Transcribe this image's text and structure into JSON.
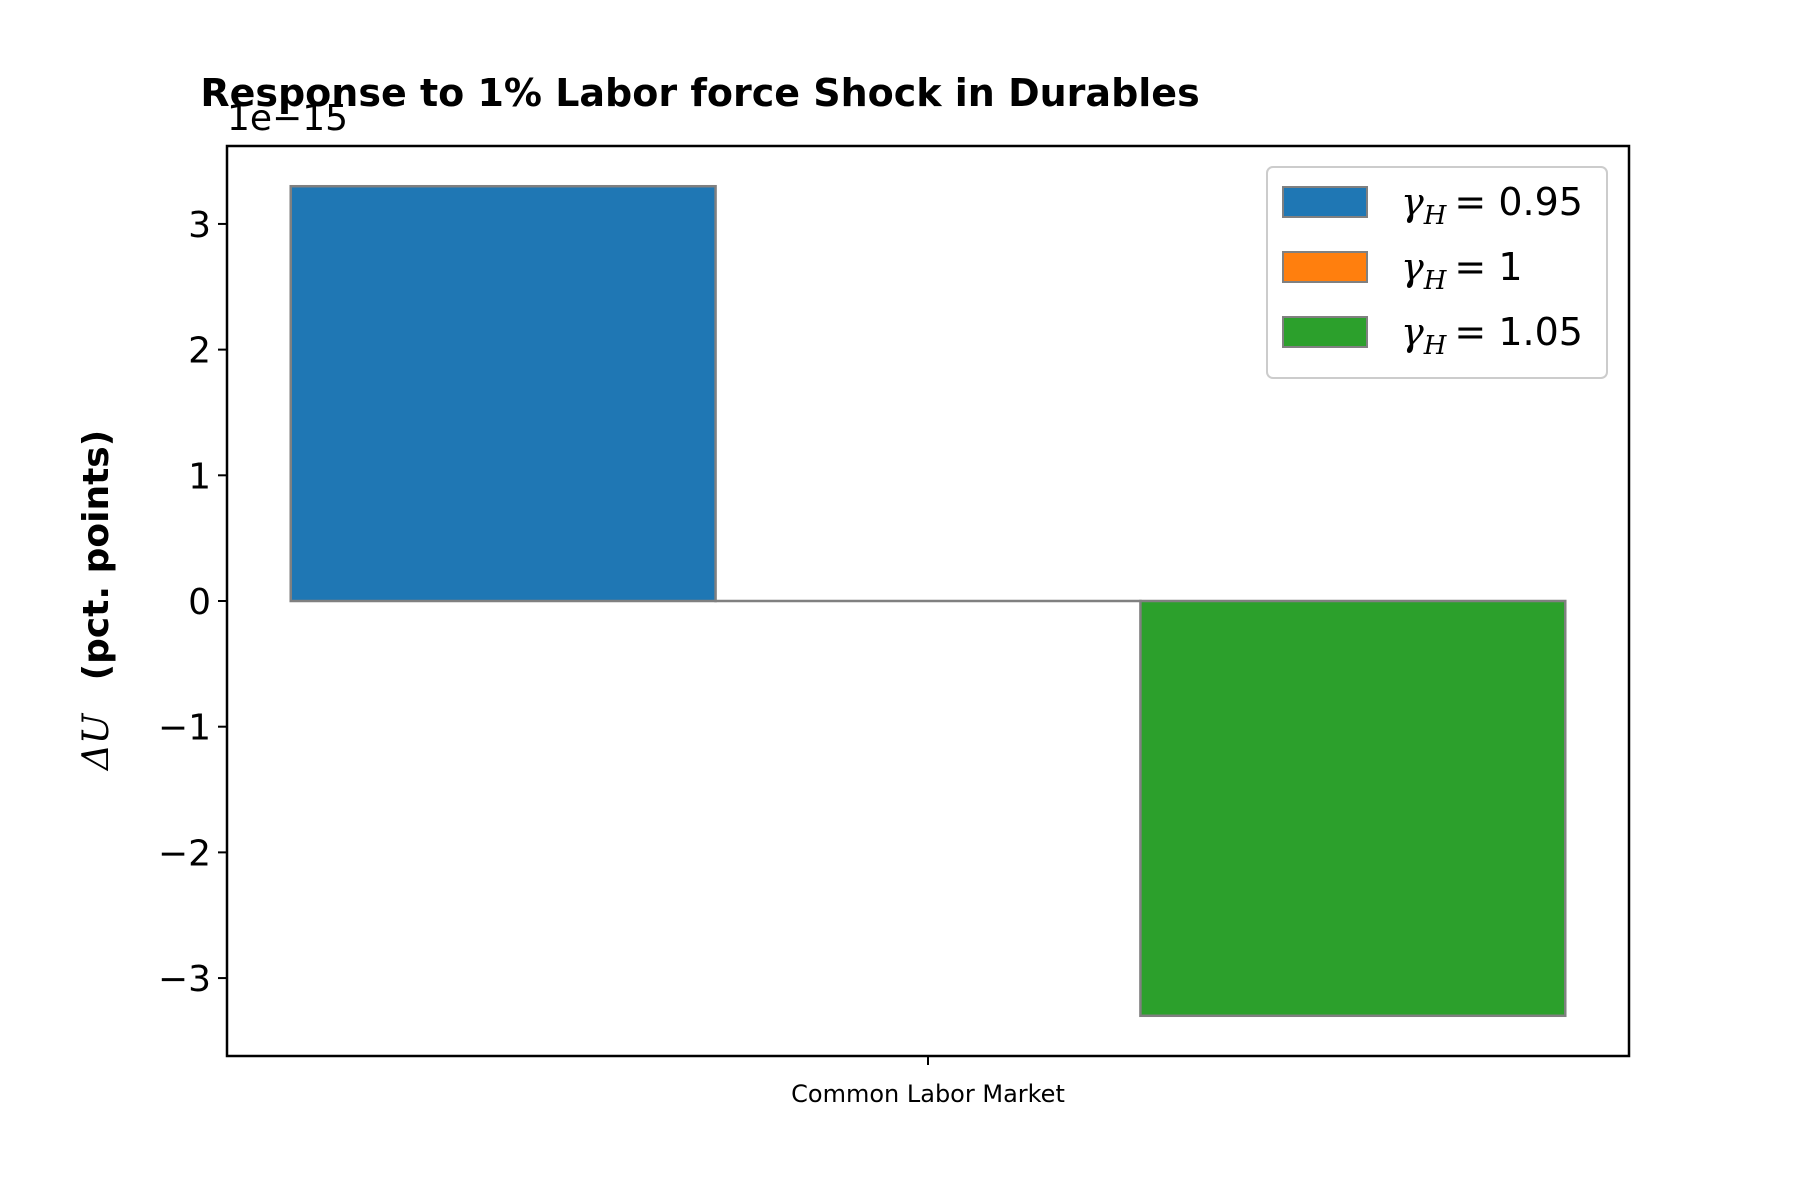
{
  "chart_data": {
    "type": "bar",
    "title": "Response to 1% Labor force Shock in Durables",
    "ylabel": "ΔU (pct. points)",
    "ylabel_parts": {
      "math": "ΔU",
      "text": "(pct. points)"
    },
    "xlabel": "",
    "categories": [
      "Common Labor Market"
    ],
    "scale_label": "1e−15",
    "scale_exponent": -15,
    "ylim": [
      -3.62,
      3.62
    ],
    "yticks": [
      -3,
      -2,
      -1,
      0,
      1,
      2,
      3
    ],
    "ytick_labels": [
      "−3",
      "−2",
      "−1",
      "0",
      "1",
      "2",
      "3"
    ],
    "series": [
      {
        "name": "γH = 0.95",
        "label_symbol": "γ",
        "label_sub": "H",
        "label_value": "0.95",
        "color": "#1f77b4",
        "values": [
          3.3
        ]
      },
      {
        "name": "γH = 1",
        "label_symbol": "γ",
        "label_sub": "H",
        "label_value": "1",
        "color": "#ff7f0e",
        "values": [
          0.0
        ]
      },
      {
        "name": "γH = 1.05",
        "label_symbol": "γ",
        "label_sub": "H",
        "label_value": "1.05",
        "color": "#2ca02c",
        "values": [
          -3.3
        ]
      }
    ],
    "bar_edge_color": "#808080",
    "legend_position": "upper right",
    "grid": false
  }
}
